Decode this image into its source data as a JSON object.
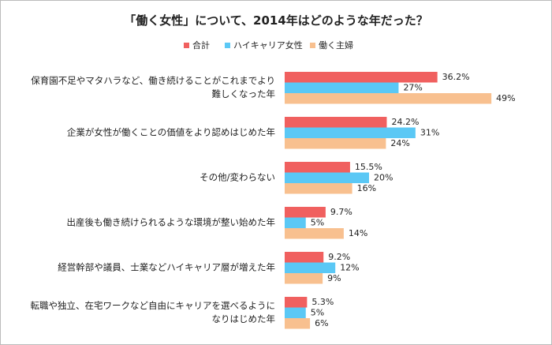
{
  "chart_data": {
    "type": "bar",
    "orientation": "horizontal",
    "legend": "top",
    "title": "「働く女性」について、2014年はどのような年だった？",
    "categories": [
      "保育園不足やマタハラなど、働き続けることがこれまでより\n難しくなった年",
      "企業が女性が働くことの価値をより認めはじめた年",
      "その他/変わらない",
      "出産後も働き続けられるような環境が整い始めた年",
      "経営幹部や議員、士業などハイキャリア層が増えた年",
      "転職や独立、在宅ワークなど自由にキャリアを選べるように\nなりはじめた年"
    ],
    "series": [
      {
        "name": "合計",
        "color": "#f0605f",
        "values": [
          36.2,
          24.2,
          15.5,
          9.7,
          9.2,
          5.3
        ],
        "value_labels": [
          "36.2%",
          "24.2%",
          "15.5%",
          "9.7%",
          "9.2%",
          "5.3%"
        ]
      },
      {
        "name": "ハイキャリア女性",
        "color": "#5bc8f5",
        "values": [
          27,
          31,
          20,
          5,
          12,
          5
        ],
        "value_labels": [
          "27%",
          "31%",
          "20%",
          "5%",
          "12%",
          "5%"
        ]
      },
      {
        "name": "働く主婦",
        "color": "#f8c08f",
        "values": [
          49,
          24,
          16,
          14,
          9,
          6
        ],
        "value_labels": [
          "49%",
          "24%",
          "16%",
          "14%",
          "9%",
          "6%"
        ]
      }
    ]
  }
}
